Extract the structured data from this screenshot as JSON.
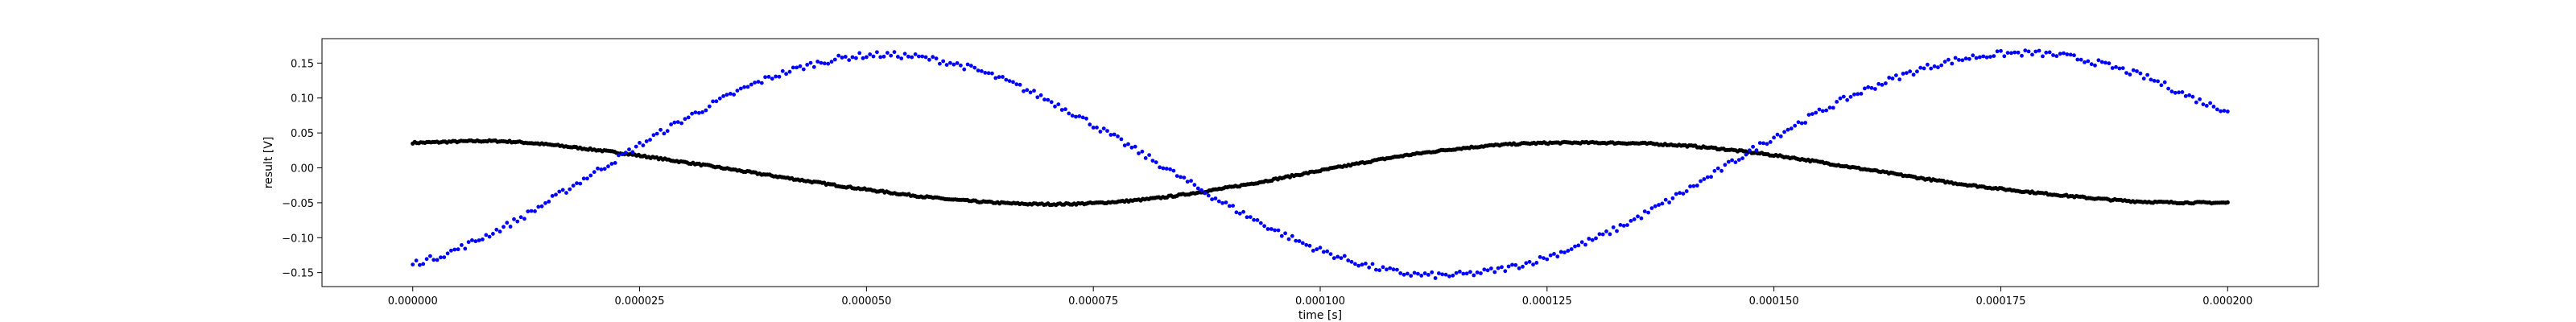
{
  "chart_data": {
    "type": "scatter",
    "title": "",
    "xlabel": "time [s]",
    "ylabel": "result [V]",
    "xlim": [
      -1e-05,
      0.00021
    ],
    "ylim": [
      -0.17,
      0.185
    ],
    "grid": false,
    "x_ticks": [
      {
        "value": 0.0,
        "label": "0.000000"
      },
      {
        "value": 2.5e-05,
        "label": "0.000025"
      },
      {
        "value": 5e-05,
        "label": "0.000050"
      },
      {
        "value": 7.5e-05,
        "label": "0.000075"
      },
      {
        "value": 0.0001,
        "label": "0.000100"
      },
      {
        "value": 0.000125,
        "label": "0.000125"
      },
      {
        "value": 0.00015,
        "label": "0.000150"
      },
      {
        "value": 0.000175,
        "label": "0.000175"
      },
      {
        "value": 0.0002,
        "label": "0.000200"
      }
    ],
    "y_ticks": [
      {
        "value": -0.15,
        "label": "−0.15"
      },
      {
        "value": -0.1,
        "label": "−0.10"
      },
      {
        "value": -0.05,
        "label": "−0.05"
      },
      {
        "value": 0.0,
        "label": "0.00"
      },
      {
        "value": 0.05,
        "label": "0.05"
      },
      {
        "value": 0.1,
        "label": "0.10"
      },
      {
        "value": 0.15,
        "label": "0.15"
      }
    ],
    "series": [
      {
        "color": "#000000",
        "x": [
          0.0,
          1e-05,
          2e-05,
          3e-05,
          4e-05,
          5e-05,
          6e-05,
          7e-05,
          8e-05,
          9e-05,
          0.0001,
          0.00011,
          0.00012,
          0.00013,
          0.00014,
          0.00015,
          0.00016,
          0.00017,
          0.00018,
          0.00019,
          0.0002
        ],
        "y": [
          0.036,
          0.038,
          0.026,
          0.008,
          -0.012,
          -0.031,
          -0.046,
          -0.052,
          -0.046,
          -0.028,
          -0.004,
          0.019,
          0.033,
          0.036,
          0.032,
          0.018,
          -0.002,
          -0.022,
          -0.037,
          -0.048,
          -0.05
        ]
      },
      {
        "color": "#0000ff",
        "x": [
          0.0,
          1e-05,
          2e-05,
          3e-05,
          4e-05,
          5e-05,
          6e-05,
          7e-05,
          8e-05,
          9e-05,
          0.0001,
          0.00011,
          0.00012,
          0.00013,
          0.00014,
          0.00015,
          0.00016,
          0.00017,
          0.00018,
          0.00019,
          0.0002
        ],
        "y": [
          -0.137,
          -0.085,
          -0.007,
          0.07,
          0.132,
          0.161,
          0.148,
          0.097,
          0.023,
          -0.055,
          -0.118,
          -0.152,
          -0.145,
          -0.103,
          -0.035,
          0.044,
          0.111,
          0.154,
          0.163,
          0.134,
          0.083
        ]
      }
    ]
  }
}
